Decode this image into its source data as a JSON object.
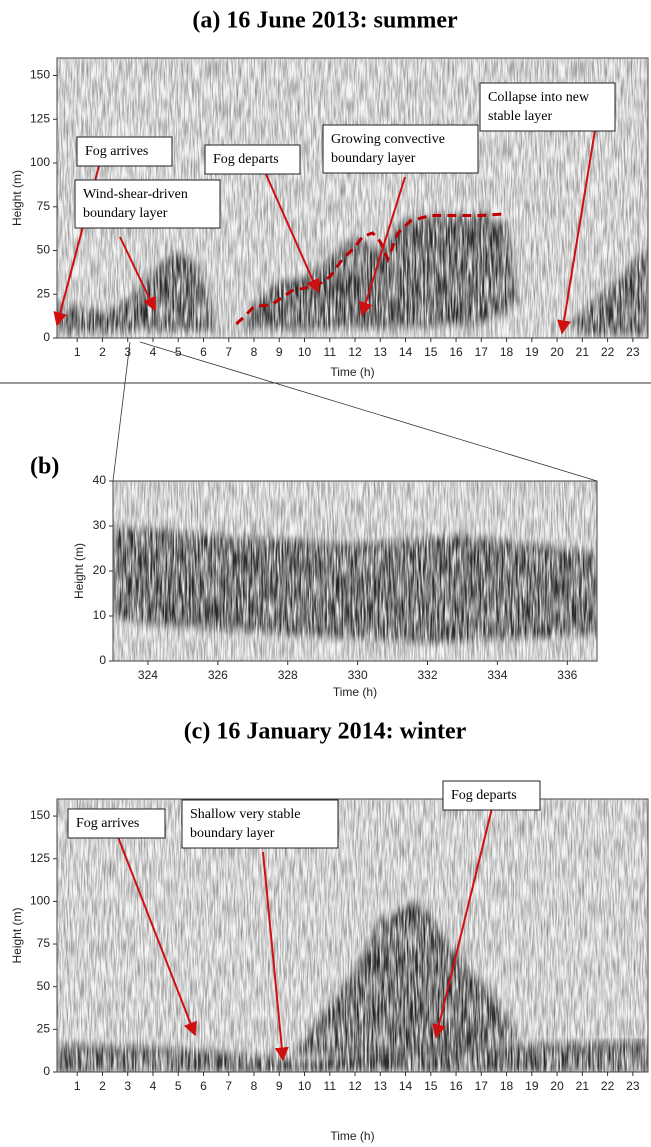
{
  "chart_data": [
    {
      "type": "heatmap",
      "title": "(a) 16 June 2013: summer",
      "x_label": "Time (h)",
      "y_label": "Height (m)",
      "xlim": [
        0.2,
        23.6
      ],
      "ylim": [
        0,
        160
      ],
      "xticks": [
        1,
        2,
        3,
        4,
        5,
        6,
        7,
        8,
        9,
        10,
        11,
        12,
        13,
        14,
        15,
        16,
        17,
        18,
        19,
        20,
        21,
        22,
        23
      ],
      "yticks": [
        0,
        25,
        50,
        75,
        100,
        125,
        150
      ],
      "series": [
        {
          "color": "#c00000",
          "x": [
            7.3,
            7.6,
            8,
            8.7,
            9,
            9.5,
            10.5,
            11,
            11.5,
            12,
            12.3,
            12.7,
            13,
            13.3,
            13.7,
            14.2,
            15,
            16,
            17,
            18
          ],
          "values": [
            8,
            12,
            18,
            19,
            22,
            27,
            30,
            35,
            45,
            52,
            58,
            60,
            55,
            45,
            60,
            67,
            70,
            70,
            70,
            71
          ]
        }
      ],
      "annotations": [
        {
          "lines": [
            "Fog arrives"
          ]
        },
        {
          "lines": [
            "Wind-shear-driven",
            "boundary layer"
          ]
        },
        {
          "lines": [
            "Fog departs"
          ]
        },
        {
          "lines": [
            "Growing convective",
            "boundary layer"
          ]
        },
        {
          "lines": [
            "Collapse into new",
            "stable layer"
          ]
        }
      ]
    },
    {
      "type": "heatmap",
      "title": "(b)",
      "x_label": "Time (h)",
      "y_label": "Height (m)",
      "xlim": [
        323,
        336.85
      ],
      "ylim": [
        0,
        40
      ],
      "xticks": [
        324,
        326,
        328,
        330,
        332,
        334,
        336
      ],
      "yticks": [
        0,
        10,
        20,
        30,
        40
      ]
    },
    {
      "type": "heatmap",
      "title": "(c) 16 January 2014: winter",
      "x_label": "Time (h)",
      "y_label": "Height (m)",
      "xlim": [
        0.2,
        23.6
      ],
      "ylim": [
        0,
        160
      ],
      "xticks": [
        1,
        2,
        3,
        4,
        5,
        6,
        7,
        8,
        9,
        10,
        11,
        12,
        13,
        14,
        15,
        16,
        17,
        18,
        19,
        20,
        21,
        22,
        23
      ],
      "yticks": [
        0,
        25,
        50,
        75,
        100,
        125,
        150
      ],
      "annotations": [
        {
          "lines": [
            "Fog arrives"
          ]
        },
        {
          "lines": [
            "Shallow very stable",
            "boundary layer"
          ]
        },
        {
          "lines": [
            "Fog departs"
          ]
        }
      ]
    }
  ]
}
